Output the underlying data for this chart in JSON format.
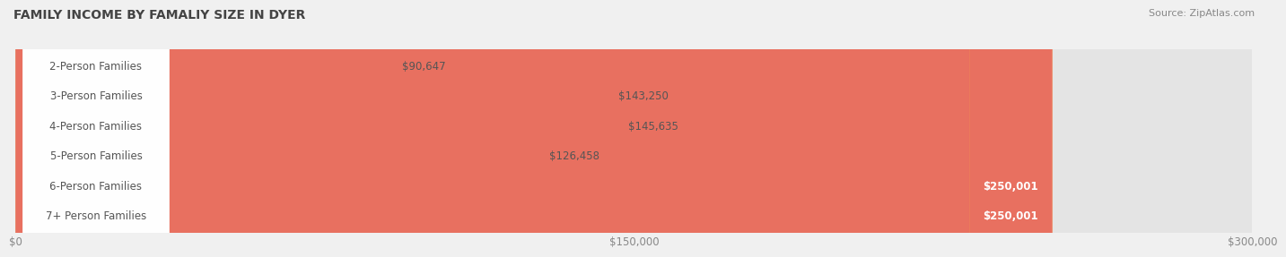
{
  "title": "FAMILY INCOME BY FAMALIY SIZE IN DYER",
  "source": "Source: ZipAtlas.com",
  "categories": [
    "2-Person Families",
    "3-Person Families",
    "4-Person Families",
    "5-Person Families",
    "6-Person Families",
    "7+ Person Families"
  ],
  "values": [
    90647,
    143250,
    145635,
    126458,
    250001,
    250001
  ],
  "bar_colors": [
    "#c9aed6",
    "#6ec9c8",
    "#a8a8d8",
    "#f4a0b8",
    "#f5a84a",
    "#e87060"
  ],
  "value_labels": [
    "$90,647",
    "$143,250",
    "$145,635",
    "$126,458",
    "$250,001",
    "$250,001"
  ],
  "label_white": [
    true,
    true,
    true,
    true,
    false,
    false
  ],
  "x_ticks": [
    0,
    150000,
    300000
  ],
  "x_tick_labels": [
    "$0",
    "$150,000",
    "$300,000"
  ],
  "xlim": [
    0,
    300000
  ],
  "background_color": "#f0f0f0",
  "bar_bg_color": "#e4e4e4",
  "title_fontsize": 10,
  "source_fontsize": 8,
  "label_fontsize": 8.5,
  "value_fontsize": 8.5
}
